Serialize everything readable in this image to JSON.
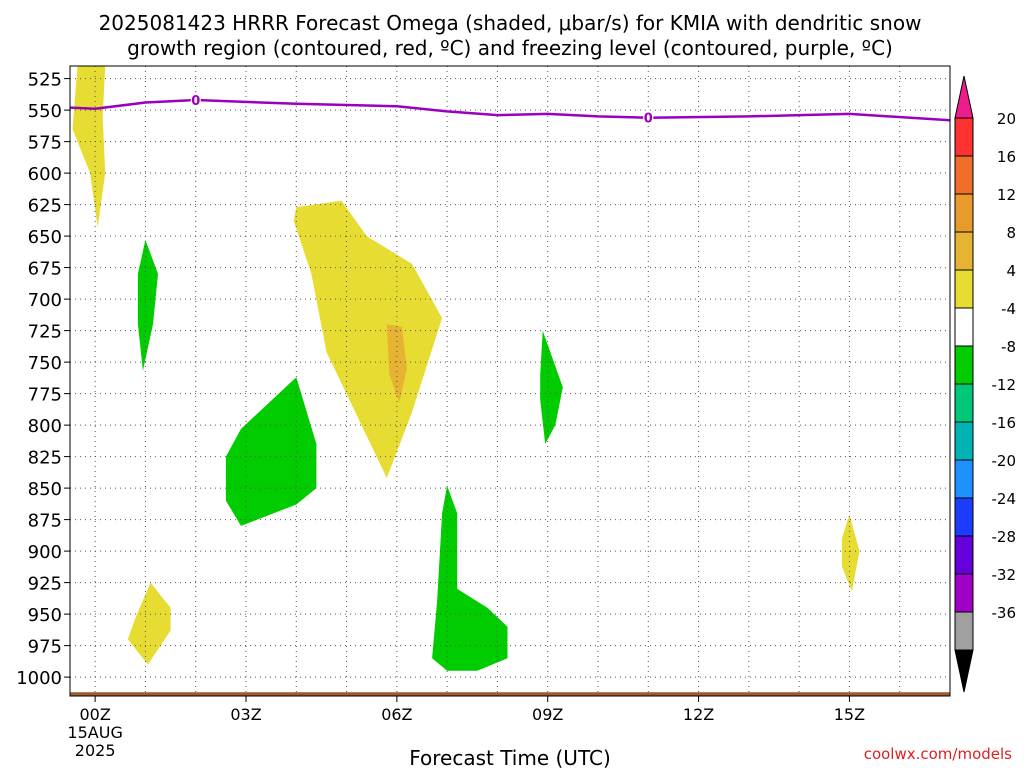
{
  "chart_data": {
    "type": "heatmap",
    "title_line1": "2025081423 HRRR Forecast Omega (shaded, μbar/s) for KMIA with dendritic snow",
    "title_line2": "growth region (contoured, red, ºC) and freezing level (contoured, purple, ºC)",
    "xlabel": "Forecast Time (UTC)",
    "x_ticks": [
      {
        "hour": 0,
        "label": "00Z",
        "sub1": "15AUG",
        "sub2": "2025"
      },
      {
        "hour": 3,
        "label": "03Z"
      },
      {
        "hour": 6,
        "label": "06Z"
      },
      {
        "hour": 9,
        "label": "09Z"
      },
      {
        "hour": 12,
        "label": "12Z"
      },
      {
        "hour": 15,
        "label": "15Z"
      }
    ],
    "x_range": [
      -0.5,
      17
    ],
    "y_range": [
      1015,
      515
    ],
    "y_ticks": [
      525,
      550,
      575,
      600,
      625,
      650,
      675,
      700,
      725,
      750,
      775,
      800,
      825,
      850,
      875,
      900,
      925,
      950,
      975,
      1000
    ],
    "watermark": "coolwx.com/models",
    "freezing_level": {
      "label": "0",
      "label_hours": [
        2,
        11
      ],
      "points": [
        [
          -0.5,
          548
        ],
        [
          0,
          549
        ],
        [
          1,
          544
        ],
        [
          2,
          542
        ],
        [
          4,
          545
        ],
        [
          6,
          547
        ],
        [
          7,
          551
        ],
        [
          8,
          554
        ],
        [
          9,
          553
        ],
        [
          10,
          555
        ],
        [
          11,
          556
        ],
        [
          13,
          555
        ],
        [
          15,
          553
        ],
        [
          17,
          558
        ]
      ],
      "color": "#9900c0"
    },
    "ground": {
      "pressure": 1012,
      "color": "#a05a32"
    },
    "omega_regions": [
      {
        "level": "4 to 8",
        "color": "#e6dc32",
        "points": [
          [
            -0.35,
            515
          ],
          [
            0.2,
            515
          ],
          [
            0.15,
            555
          ],
          [
            0.2,
            600
          ],
          [
            0.05,
            643
          ],
          [
            -0.1,
            600
          ],
          [
            -0.45,
            565
          ]
        ]
      },
      {
        "level": "4 to 8",
        "color": "#e6dc32",
        "points": [
          [
            4.0,
            627
          ],
          [
            4.9,
            622
          ],
          [
            5.4,
            650
          ],
          [
            6.3,
            672
          ],
          [
            6.9,
            715
          ],
          [
            6.3,
            790
          ],
          [
            5.8,
            842
          ],
          [
            4.6,
            742
          ],
          [
            4.3,
            680
          ],
          [
            3.95,
            638
          ]
        ]
      },
      {
        "level": "4 to 8",
        "color": "#e6dc32",
        "points": [
          [
            0.8,
            953
          ],
          [
            1.1,
            925
          ],
          [
            1.5,
            945
          ],
          [
            1.5,
            963
          ],
          [
            1.05,
            990
          ],
          [
            0.65,
            970
          ]
        ]
      },
      {
        "level": "4 to 8",
        "color": "#e6dc32",
        "points": [
          [
            15.0,
            871
          ],
          [
            15.2,
            900
          ],
          [
            15.05,
            932
          ],
          [
            14.85,
            912
          ],
          [
            14.85,
            890
          ]
        ]
      },
      {
        "level": "8 to 12",
        "color": "#e6b432",
        "points": [
          [
            5.8,
            720
          ],
          [
            6.1,
            722
          ],
          [
            6.2,
            755
          ],
          [
            6.05,
            782
          ],
          [
            5.85,
            760
          ]
        ]
      },
      {
        "level": "-8 to -4",
        "color": "#00cc00",
        "points": [
          [
            1.0,
            653
          ],
          [
            1.25,
            680
          ],
          [
            1.15,
            720
          ],
          [
            0.95,
            757
          ],
          [
            0.85,
            720
          ],
          [
            0.85,
            680
          ]
        ]
      },
      {
        "level": "-8 to -4",
        "color": "#00cc00",
        "points": [
          [
            2.9,
            803
          ],
          [
            4.0,
            762
          ],
          [
            4.4,
            815
          ],
          [
            4.4,
            850
          ],
          [
            4.0,
            863
          ],
          [
            2.9,
            880
          ],
          [
            2.6,
            860
          ],
          [
            2.6,
            825
          ]
        ]
      },
      {
        "level": "-8 to -4",
        "color": "#00cc00",
        "points": [
          [
            8.9,
            725
          ],
          [
            9.3,
            770
          ],
          [
            9.15,
            800
          ],
          [
            8.95,
            815
          ],
          [
            8.85,
            780
          ],
          [
            8.85,
            760
          ]
        ]
      },
      {
        "level": "-8 to -4",
        "color": "#00cc00",
        "points": [
          [
            7.0,
            848
          ],
          [
            7.2,
            870
          ],
          [
            7.2,
            930
          ],
          [
            7.8,
            945
          ],
          [
            8.2,
            960
          ],
          [
            8.2,
            985
          ],
          [
            7.6,
            995
          ],
          [
            7.0,
            995
          ],
          [
            6.7,
            985
          ],
          [
            6.8,
            940
          ],
          [
            6.9,
            870
          ]
        ]
      }
    ],
    "colorbar": {
      "labels": [
        "20",
        "16",
        "12",
        "8",
        "4",
        "-4",
        "-8",
        "-12",
        "-16",
        "-20",
        "-24",
        "-28",
        "-32",
        "-36"
      ],
      "colors": [
        "#ff3232",
        "#f06e2a",
        "#e89a2c",
        "#e6b432",
        "#e6dc32",
        "#ffffff",
        "#00cc00",
        "#00c878",
        "#00b4b4",
        "#1e90ff",
        "#1e3cff",
        "#6400dc",
        "#a000c8",
        "#a0a0a0"
      ],
      "top_arrow_color": "#ee1c8c",
      "bottom_arrow_color": "#000000"
    }
  }
}
